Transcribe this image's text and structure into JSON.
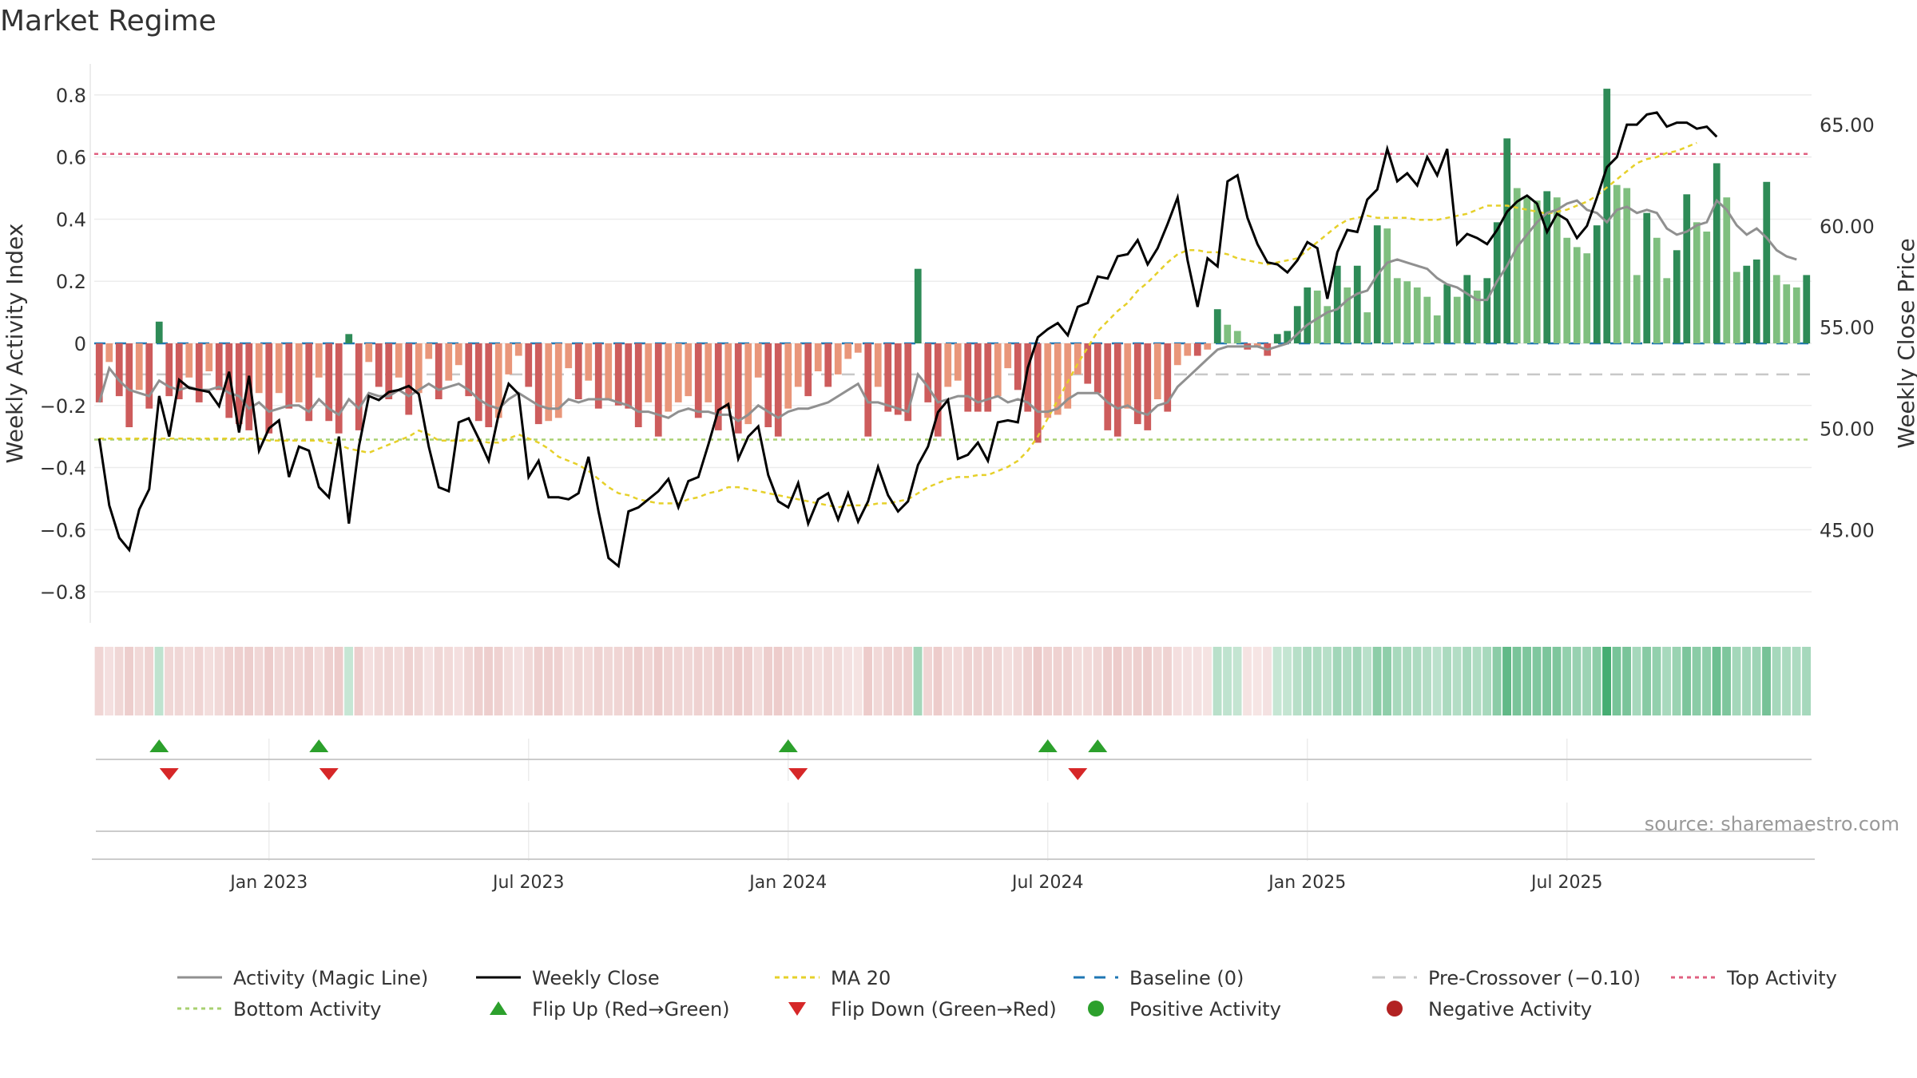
{
  "title": "Market Regime",
  "source": "source: sharemaestro.com",
  "colors": {
    "green_dark": "#2e8b57",
    "green_light": "#7fbf7f",
    "red_dark": "#cd5c5c",
    "red_light": "#e9967a",
    "close": "#000000",
    "magic": "#909090",
    "ma": "#e6d02a",
    "baseline": "#1f77b4",
    "pre": "#c8c8c8",
    "top": "#e06080",
    "bottom": "#a8d070",
    "flip_up": "#2ca02c",
    "flip_down": "#d62728"
  },
  "chart_data": {
    "type": "bar",
    "x_start_label": "2022-09",
    "x_ticks": [
      "Jan 2023",
      "Jul 2023",
      "Jan 2024",
      "Jul 2024",
      "Jan 2025",
      "Jul 2025"
    ],
    "x_tick_weeks": [
      17,
      43,
      69,
      95,
      121,
      147
    ],
    "left_axis": {
      "label": "Weekly Activity Index",
      "range": [
        -0.9,
        0.9
      ],
      "ticks": [
        "−0.8",
        "−0.6",
        "−0.4",
        "−0.2",
        "0",
        "0.2",
        "0.4",
        "0.6",
        "0.8"
      ]
    },
    "right_axis": {
      "label": "Weekly Close Price",
      "range": [
        40.4,
        68.0
      ],
      "ticks": [
        "45.00",
        "50.00",
        "55.00",
        "60.00",
        "65.00"
      ]
    },
    "activity": [
      -0.19,
      -0.06,
      -0.17,
      -0.27,
      -0.15,
      -0.21,
      0.07,
      -0.17,
      -0.18,
      -0.11,
      -0.19,
      -0.09,
      -0.15,
      -0.24,
      -0.26,
      -0.28,
      -0.16,
      -0.29,
      -0.16,
      -0.21,
      -0.19,
      -0.25,
      -0.11,
      -0.25,
      -0.29,
      0.03,
      -0.28,
      -0.06,
      -0.14,
      -0.18,
      -0.11,
      -0.23,
      -0.16,
      -0.05,
      -0.18,
      -0.12,
      -0.07,
      -0.17,
      -0.25,
      -0.27,
      -0.24,
      -0.1,
      -0.04,
      -0.14,
      -0.26,
      -0.25,
      -0.24,
      -0.08,
      -0.18,
      -0.12,
      -0.21,
      -0.18,
      -0.2,
      -0.21,
      -0.27,
      -0.19,
      -0.3,
      -0.22,
      -0.19,
      -0.17,
      -0.24,
      -0.19,
      -0.28,
      -0.21,
      -0.29,
      -0.26,
      -0.11,
      -0.27,
      -0.3,
      -0.21,
      -0.14,
      -0.17,
      -0.09,
      -0.14,
      -0.1,
      -0.05,
      -0.03,
      -0.3,
      -0.14,
      -0.22,
      -0.23,
      -0.25,
      0.24,
      -0.19,
      -0.3,
      -0.14,
      -0.12,
      -0.22,
      -0.22,
      -0.22,
      -0.17,
      -0.08,
      -0.15,
      -0.22,
      -0.32,
      -0.24,
      -0.23,
      -0.21,
      -0.1,
      -0.13,
      -0.16,
      -0.28,
      -0.3,
      -0.21,
      -0.26,
      -0.28,
      -0.18,
      -0.22,
      -0.07,
      -0.04,
      -0.04,
      -0.02,
      0.11,
      0.06,
      0.04,
      -0.02,
      -0.01,
      -0.04,
      0.03,
      0.04,
      0.12,
      0.18,
      0.17,
      0.12,
      0.25,
      0.18,
      0.25,
      0.1,
      0.38,
      0.37,
      0.21,
      0.2,
      0.18,
      0.15,
      0.09,
      0.19,
      0.15,
      0.22,
      0.17,
      0.21,
      0.39,
      0.66,
      0.5,
      0.47,
      0.46,
      0.49,
      0.47,
      0.34,
      0.31,
      0.29,
      0.38,
      0.82,
      0.51,
      0.5,
      0.22,
      0.42,
      0.34,
      0.21,
      0.3,
      0.48,
      0.39,
      0.36,
      0.58,
      0.47,
      0.23,
      0.25,
      0.27,
      0.52,
      0.22,
      0.19,
      0.18,
      0.22
    ],
    "close": [
      49.5,
      46.2,
      44.6,
      44.0,
      46.0,
      47.0,
      51.6,
      49.6,
      52.4,
      52.0,
      51.9,
      51.8,
      51.1,
      52.8,
      49.8,
      52.6,
      48.9,
      50.0,
      50.4,
      47.6,
      49.1,
      48.9,
      47.1,
      46.6,
      49.6,
      45.3,
      49.1,
      51.6,
      51.4,
      51.8,
      51.9,
      52.1,
      51.7,
      49.1,
      47.1,
      46.9,
      50.3,
      50.5,
      49.5,
      48.4,
      50.7,
      52.2,
      51.7,
      47.6,
      48.4,
      46.6,
      46.6,
      46.5,
      46.8,
      48.6,
      45.9,
      43.6,
      43.2,
      45.9,
      46.1,
      46.5,
      46.9,
      47.5,
      46.1,
      47.4,
      47.6,
      49.2,
      50.9,
      51.2,
      48.5,
      49.6,
      50.1,
      47.7,
      46.4,
      46.1,
      47.3,
      45.3,
      46.5,
      46.8,
      45.5,
      46.8,
      45.4,
      46.4,
      48.1,
      46.7,
      45.9,
      46.4,
      48.2,
      49.1,
      50.8,
      51.4,
      48.5,
      48.7,
      49.3,
      48.4,
      50.3,
      50.4,
      50.3,
      53.0,
      54.5,
      54.9,
      55.2,
      54.6,
      56.0,
      56.2,
      57.5,
      57.4,
      58.5,
      58.6,
      59.3,
      58.1,
      58.9,
      60.1,
      61.4,
      58.3,
      56.0,
      58.4,
      58.0,
      62.2,
      62.5,
      60.4,
      59.1,
      58.2,
      58.1,
      57.7,
      58.3,
      59.2,
      58.9,
      56.4,
      58.7,
      59.8,
      59.7,
      61.3,
      61.8,
      63.8,
      62.2,
      62.6,
      62.0,
      63.4,
      62.5,
      63.8,
      59.1,
      59.6,
      59.4,
      59.1,
      59.8,
      60.7,
      61.2,
      61.5,
      61.1,
      59.7,
      60.6,
      60.3,
      59.4,
      60.0,
      61.4,
      62.9,
      63.4,
      65.0,
      65.0,
      65.5,
      65.6,
      64.9,
      65.1,
      65.1,
      64.8,
      64.9,
      64.4
    ],
    "magic": [
      -0.19,
      -0.08,
      -0.12,
      -0.15,
      -0.16,
      -0.17,
      -0.12,
      -0.14,
      -0.15,
      -0.14,
      -0.15,
      -0.15,
      -0.14,
      -0.16,
      -0.17,
      -0.21,
      -0.19,
      -0.22,
      -0.21,
      -0.2,
      -0.2,
      -0.22,
      -0.18,
      -0.21,
      -0.23,
      -0.18,
      -0.21,
      -0.16,
      -0.17,
      -0.17,
      -0.15,
      -0.17,
      -0.15,
      -0.13,
      -0.15,
      -0.14,
      -0.13,
      -0.15,
      -0.18,
      -0.2,
      -0.21,
      -0.18,
      -0.16,
      -0.18,
      -0.2,
      -0.21,
      -0.21,
      -0.18,
      -0.19,
      -0.18,
      -0.18,
      -0.18,
      -0.19,
      -0.2,
      -0.22,
      -0.22,
      -0.23,
      -0.24,
      -0.22,
      -0.21,
      -0.22,
      -0.22,
      -0.23,
      -0.23,
      -0.25,
      -0.23,
      -0.2,
      -0.22,
      -0.24,
      -0.22,
      -0.21,
      -0.21,
      -0.2,
      -0.19,
      -0.17,
      -0.15,
      -0.13,
      -0.19,
      -0.19,
      -0.2,
      -0.21,
      -0.22,
      -0.1,
      -0.14,
      -0.19,
      -0.18,
      -0.17,
      -0.17,
      -0.19,
      -0.18,
      -0.17,
      -0.19,
      -0.18,
      -0.19,
      -0.22,
      -0.22,
      -0.21,
      -0.18,
      -0.16,
      -0.16,
      -0.16,
      -0.19,
      -0.21,
      -0.2,
      -0.22,
      -0.23,
      -0.2,
      -0.19,
      -0.14,
      -0.11,
      -0.08,
      -0.05,
      -0.02,
      -0.01,
      -0.01,
      -0.01,
      -0.01,
      -0.02,
      -0.01,
      0.0,
      0.03,
      0.06,
      0.08,
      0.1,
      0.11,
      0.14,
      0.16,
      0.17,
      0.22,
      0.26,
      0.27,
      0.26,
      0.25,
      0.24,
      0.21,
      0.19,
      0.18,
      0.16,
      0.14,
      0.14,
      0.2,
      0.25,
      0.31,
      0.35,
      0.39,
      0.42,
      0.43,
      0.45,
      0.46,
      0.43,
      0.42,
      0.39,
      0.43,
      0.44,
      0.42,
      0.43,
      0.42,
      0.37,
      0.35,
      0.36,
      0.38,
      0.39,
      0.46,
      0.43,
      0.38,
      0.35,
      0.37,
      0.34,
      0.3,
      0.28,
      0.27
    ],
    "ma20": [
      49.5,
      49.5,
      49.5,
      49.5,
      49.5,
      49.5,
      49.5,
      49.5,
      49.5,
      49.5,
      49.5,
      49.5,
      49.5,
      49.5,
      49.5,
      49.5,
      49.5,
      49.4,
      49.4,
      49.4,
      49.4,
      49.4,
      49.4,
      49.3,
      49.2,
      49.0,
      48.9,
      48.8,
      49.0,
      49.2,
      49.4,
      49.6,
      49.9,
      49.7,
      49.4,
      49.4,
      49.4,
      49.4,
      49.4,
      49.3,
      49.3,
      49.5,
      49.7,
      49.5,
      49.3,
      49.0,
      48.6,
      48.4,
      48.2,
      47.9,
      47.5,
      47.1,
      46.8,
      46.7,
      46.5,
      46.4,
      46.3,
      46.3,
      46.3,
      46.5,
      46.6,
      46.8,
      46.9,
      47.1,
      47.1,
      47.0,
      46.9,
      46.8,
      46.7,
      46.6,
      46.5,
      46.4,
      46.3,
      46.2,
      46.1,
      46.2,
      46.2,
      46.2,
      46.3,
      46.3,
      46.4,
      46.5,
      46.8,
      47.1,
      47.3,
      47.5,
      47.6,
      47.6,
      47.7,
      47.7,
      47.9,
      48.1,
      48.4,
      48.9,
      49.6,
      50.5,
      51.4,
      52.3,
      53.2,
      54.0,
      54.8,
      55.3,
      55.8,
      56.2,
      56.8,
      57.2,
      57.7,
      58.2,
      58.6,
      58.8,
      58.8,
      58.7,
      58.7,
      58.6,
      58.4,
      58.3,
      58.2,
      58.1,
      58.2,
      58.3,
      58.4,
      58.8,
      59.2,
      59.6,
      60.0,
      60.3,
      60.4,
      60.5,
      60.4,
      60.4,
      60.4,
      60.4,
      60.3,
      60.3,
      60.3,
      60.4,
      60.5,
      60.6,
      60.8,
      61.0,
      61.0,
      61.0,
      60.9,
      60.8,
      60.7,
      60.6,
      60.7,
      60.8,
      61.0,
      61.2,
      61.5,
      61.9,
      62.3,
      62.7,
      63.1,
      63.3,
      63.4,
      63.6,
      63.7,
      63.9,
      64.1
    ],
    "baseline": 0,
    "pre_crossover": -0.1,
    "top_activity": 0.61,
    "bottom_activity": -0.31,
    "flip_up_weeks": [
      6,
      22,
      69,
      95,
      100
    ],
    "flip_down_weeks": [
      7,
      23,
      70,
      98
    ],
    "legend": [
      "Activity (Magic Line)",
      "Weekly Close",
      "MA 20",
      "Baseline (0)",
      "Pre-Crossover (−0.10)",
      "Top Activity",
      "Bottom Activity",
      "Flip Up (Red→Green)",
      "Flip Down (Green→Red)",
      "Positive Activity",
      "Negative Activity"
    ]
  }
}
